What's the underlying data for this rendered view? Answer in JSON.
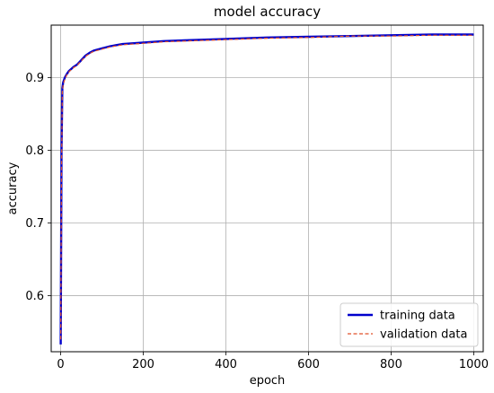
{
  "chart_data": {
    "type": "line",
    "title": "model accuracy",
    "xlabel": "epoch",
    "ylabel": "accuracy",
    "xlim": [
      -23,
      1023
    ],
    "ylim": [
      0.523,
      0.972
    ],
    "xticks": [
      0,
      200,
      400,
      600,
      800,
      1000
    ],
    "xtick_labels": [
      "0",
      "200",
      "400",
      "600",
      "800",
      "1000"
    ],
    "yticks": [
      0.6,
      0.7,
      0.8,
      0.9
    ],
    "ytick_labels": [
      "0.6",
      "0.7",
      "0.8",
      "0.9"
    ],
    "grid": true,
    "legend_position": "lower-right",
    "series": [
      {
        "name": "training data",
        "color": "#0000cc",
        "style": "solid",
        "x": [
          0,
          2,
          4,
          6,
          10,
          15,
          20,
          30,
          40,
          50,
          60,
          70,
          80,
          100,
          120,
          150,
          200,
          250,
          300,
          400,
          500,
          600,
          700,
          800,
          900,
          1000
        ],
        "y": [
          0.533,
          0.8,
          0.885,
          0.893,
          0.9,
          0.905,
          0.909,
          0.914,
          0.918,
          0.924,
          0.93,
          0.934,
          0.937,
          0.94,
          0.943,
          0.946,
          0.948,
          0.95,
          0.951,
          0.953,
          0.955,
          0.956,
          0.957,
          0.958,
          0.959,
          0.959
        ]
      },
      {
        "name": "validation data",
        "color": "#e0502a",
        "style": "dashed",
        "x": [
          0,
          2,
          4,
          6,
          10,
          15,
          20,
          30,
          40,
          50,
          60,
          70,
          80,
          100,
          120,
          150,
          200,
          250,
          300,
          400,
          500,
          600,
          700,
          800,
          900,
          1000
        ],
        "y": [
          0.54,
          0.78,
          0.88,
          0.89,
          0.898,
          0.904,
          0.908,
          0.913,
          0.917,
          0.923,
          0.929,
          0.933,
          0.936,
          0.939,
          0.942,
          0.945,
          0.947,
          0.949,
          0.95,
          0.952,
          0.954,
          0.955,
          0.957,
          0.957,
          0.958,
          0.958
        ]
      }
    ]
  }
}
